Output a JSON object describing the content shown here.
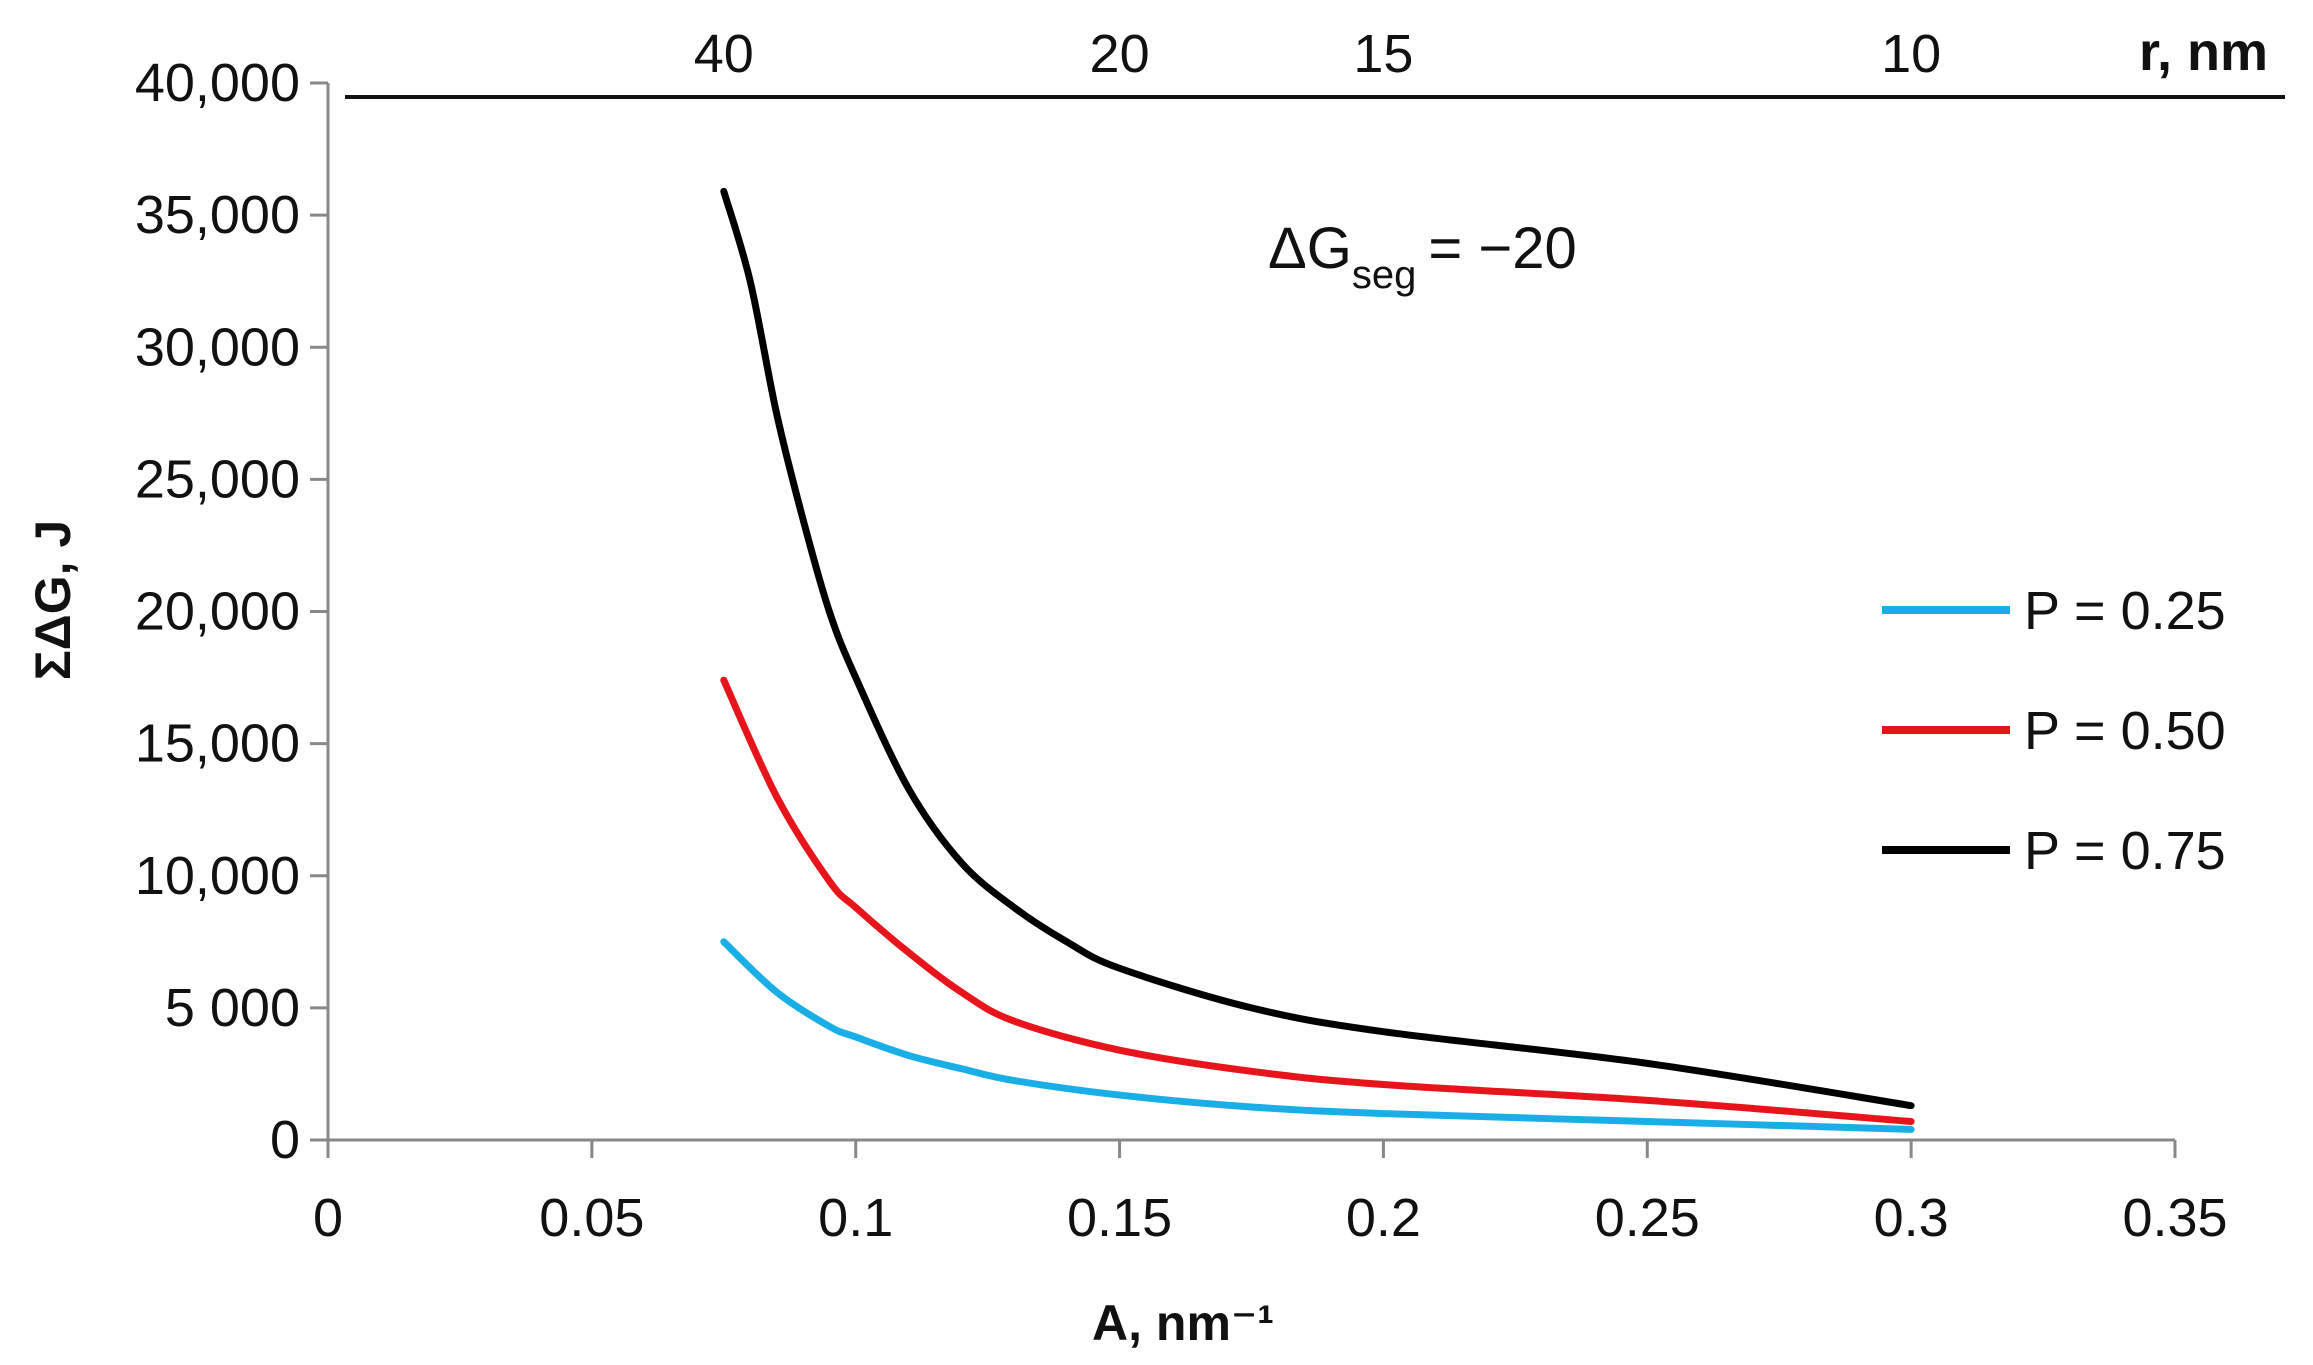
{
  "chart_data": {
    "type": "line",
    "title": "",
    "xlabel": "A, nm⁻¹",
    "ylabel": "ΣΔG, J",
    "xlim": [
      0,
      0.35
    ],
    "ylim": [
      0,
      40000
    ],
    "x_ticks": [
      0,
      0.05,
      0.1,
      0.15,
      0.2,
      0.25,
      0.3,
      0.35
    ],
    "x_tick_labels": [
      "0",
      "0.05",
      "0.1",
      "0.15",
      "0.2",
      "0.25",
      "0.3",
      "0.35"
    ],
    "y_ticks": [
      0,
      5000,
      10000,
      15000,
      20000,
      25000,
      30000,
      35000,
      40000
    ],
    "y_tick_labels": [
      "0",
      "5 000",
      "10,000",
      "15,000",
      "20,000",
      "25,000",
      "30,000",
      "35,000",
      "40,000"
    ],
    "secondary_axis": {
      "label": "r, nm",
      "ticks": [
        {
          "label": "40",
          "A": 0.075
        },
        {
          "label": "20",
          "A": 0.15
        },
        {
          "label": "15",
          "A": 0.2
        },
        {
          "label": "10",
          "A": 0.3
        }
      ]
    },
    "annotation": {
      "main": "ΔG",
      "sub": "seg",
      "rest": "= −20"
    },
    "legend_position": "right",
    "grid": false,
    "series": [
      {
        "name": "P = 0.25",
        "color": "#1aaee6",
        "x": [
          0.075,
          0.085,
          0.095,
          0.1,
          0.11,
          0.12,
          0.13,
          0.15,
          0.175,
          0.2,
          0.25,
          0.3
        ],
        "y": [
          7500,
          5600,
          4300,
          3900,
          3200,
          2700,
          2250,
          1700,
          1250,
          1000,
          700,
          400
        ]
      },
      {
        "name": "P = 0.50",
        "color": "#e8141b",
        "x": [
          0.075,
          0.085,
          0.095,
          0.1,
          0.11,
          0.12,
          0.13,
          0.15,
          0.175,
          0.2,
          0.25,
          0.3
        ],
        "y": [
          17400,
          13000,
          9800,
          8800,
          7100,
          5600,
          4500,
          3400,
          2600,
          2100,
          1500,
          700
        ]
      },
      {
        "name": "P = 0.75",
        "color": "#000000",
        "x": [
          0.075,
          0.08,
          0.085,
          0.09,
          0.095,
          0.1,
          0.11,
          0.12,
          0.13,
          0.14,
          0.15,
          0.175,
          0.2,
          0.25,
          0.3
        ],
        "y": [
          35900,
          32500,
          27500,
          23500,
          20000,
          17500,
          13300,
          10500,
          8800,
          7500,
          6500,
          5000,
          4100,
          2900,
          1300
        ]
      }
    ]
  }
}
